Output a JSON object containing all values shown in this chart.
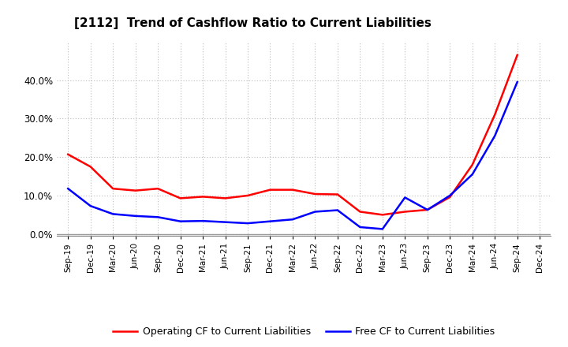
{
  "title": "[2112]  Trend of Cashflow Ratio to Current Liabilities",
  "x_labels": [
    "Sep-19",
    "Dec-19",
    "Mar-20",
    "Jun-20",
    "Sep-20",
    "Dec-20",
    "Mar-21",
    "Jun-21",
    "Sep-21",
    "Dec-21",
    "Mar-22",
    "Jun-22",
    "Sep-22",
    "Dec-22",
    "Mar-23",
    "Jun-23",
    "Sep-23",
    "Dec-23",
    "Mar-24",
    "Jun-24",
    "Sep-24",
    "Dec-24"
  ],
  "operating_cf_indices": [
    0,
    1,
    2,
    3,
    4,
    5,
    6,
    7,
    8,
    9,
    10,
    11,
    12,
    13,
    14,
    15,
    16,
    17,
    18,
    19,
    20
  ],
  "operating_cf_values": [
    0.207,
    0.175,
    0.118,
    0.113,
    0.118,
    0.093,
    0.097,
    0.093,
    0.1,
    0.115,
    0.115,
    0.104,
    0.103,
    0.058,
    0.05,
    0.058,
    0.063,
    0.096,
    0.18,
    0.31,
    0.465
  ],
  "free_cf_indices": [
    0,
    1,
    2,
    3,
    4,
    5,
    6,
    7,
    8,
    9,
    10,
    11,
    12,
    13,
    14,
    15,
    16,
    17,
    18,
    19,
    20
  ],
  "free_cf_values": [
    0.118,
    0.073,
    0.052,
    0.047,
    0.044,
    0.033,
    0.034,
    0.031,
    0.028,
    0.033,
    0.038,
    0.058,
    0.062,
    0.018,
    0.013,
    0.095,
    0.063,
    0.1,
    0.155,
    0.255,
    0.395
  ],
  "operating_cf_color": "#FF0000",
  "free_cf_color": "#0000FF",
  "background_color": "#FFFFFF",
  "grid_color": "#AAAAAA",
  "ylim": [
    -0.005,
    0.5
  ],
  "yticks": [
    0.0,
    0.1,
    0.2,
    0.3,
    0.4
  ],
  "legend_labels": [
    "Operating CF to Current Liabilities",
    "Free CF to Current Liabilities"
  ]
}
